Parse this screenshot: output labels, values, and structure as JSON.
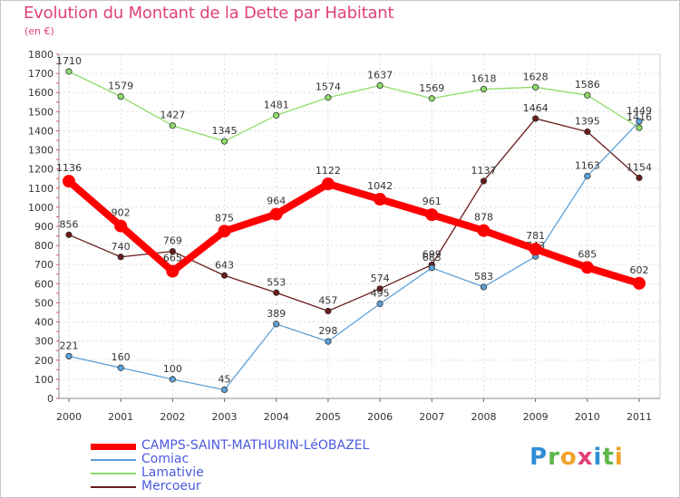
{
  "header": {
    "title": "Evolution du Montant de la Dette par Habitant",
    "subtitle": "(en €)"
  },
  "logo": {
    "text": "Proxiti",
    "letters": [
      {
        "ch": "P",
        "color": "#2f8fd6"
      },
      {
        "ch": "r",
        "color": "#5cb84a"
      },
      {
        "ch": "o",
        "color": "#f0a22a"
      },
      {
        "ch": "x",
        "color": "#e0407a"
      },
      {
        "ch": "i",
        "color": "#2f8fd6"
      },
      {
        "ch": "t",
        "color": "#5cb84a"
      },
      {
        "ch": "i",
        "color": "#f0a22a"
      }
    ]
  },
  "chart_data": {
    "type": "line",
    "title": "Evolution du Montant de la Dette par Habitant",
    "subtitle": "(en €)",
    "xlabel": "",
    "ylabel": "",
    "x": [
      "2000",
      "2001",
      "2002",
      "2003",
      "2004",
      "2005",
      "2006",
      "2007",
      "2008",
      "2009",
      "2010",
      "2011"
    ],
    "ylim": [
      0,
      1800
    ],
    "yticks": [
      0,
      100,
      200,
      300,
      400,
      500,
      600,
      700,
      800,
      900,
      1000,
      1100,
      1200,
      1300,
      1400,
      1500,
      1600,
      1700,
      1800
    ],
    "grid": true,
    "legend_position": "bottom-left",
    "series": [
      {
        "name": "Mercoeur",
        "color": "#6b1a1a",
        "values": [
          856,
          740,
          769,
          643,
          553,
          457,
          574,
          699,
          1137,
          1464,
          1395,
          1154
        ]
      },
      {
        "name": "Lamativie",
        "color": "#8fdc6a",
        "values": [
          1710,
          1579,
          1427,
          1345,
          1481,
          1574,
          1637,
          1569,
          1618,
          1628,
          1586,
          1416
        ]
      },
      {
        "name": "Comiac",
        "color": "#5ea0d8",
        "values": [
          221,
          160,
          100,
          45,
          389,
          298,
          495,
          683,
          583,
          743,
          1163,
          1449
        ]
      },
      {
        "name": "CAMPS-SAINT-MATHURIN-LéOBAZEL",
        "color": "#ff0000",
        "values": [
          1136,
          902,
          665,
          875,
          964,
          1122,
          1042,
          961,
          878,
          781,
          685,
          602
        ]
      }
    ]
  }
}
